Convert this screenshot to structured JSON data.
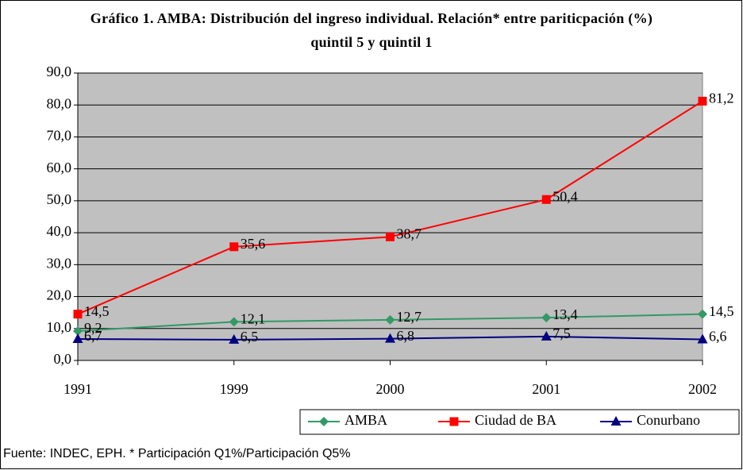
{
  "chart_data": {
    "type": "line",
    "title": "Gráfico 1. AMBA: Distribución del ingreso individual. Relación* entre pariticpación (%) quintil 5 y quintil 1",
    "source": "Fuente: INDEC, EPH. * Participación Q1%/Participación Q5%",
    "categories": [
      "1991",
      "1999",
      "2000",
      "2001",
      "2002"
    ],
    "series": [
      {
        "name": "AMBA",
        "color": "#339966",
        "marker": "diamond",
        "values": [
          9.2,
          12.1,
          12.7,
          13.4,
          14.5
        ],
        "value_labels": [
          "9,2",
          "12,1",
          "12,7",
          "13,4",
          "14,5"
        ]
      },
      {
        "name": "Ciudad de BA",
        "color": "#ff0000",
        "marker": "square",
        "values": [
          14.5,
          35.6,
          38.7,
          50.4,
          81.2
        ],
        "value_labels": [
          "14,5",
          "35,6",
          "38,7",
          "50,4",
          "81,2"
        ]
      },
      {
        "name": "Conurbano",
        "color": "#000080",
        "marker": "triangle",
        "values": [
          6.7,
          6.5,
          6.8,
          7.5,
          6.6
        ],
        "value_labels": [
          "6,7",
          "6,5",
          "6,8",
          "7,5",
          "6,6"
        ]
      }
    ],
    "ylim": [
      0,
      90
    ],
    "yticks": [
      {
        "value": 0,
        "label": "0,0"
      },
      {
        "value": 10,
        "label": "10,0"
      },
      {
        "value": 20,
        "label": "20,0"
      },
      {
        "value": 30,
        "label": "30,0"
      },
      {
        "value": 40,
        "label": "40,0"
      },
      {
        "value": 50,
        "label": "50,0"
      },
      {
        "value": 60,
        "label": "60,0"
      },
      {
        "value": 70,
        "label": "70,0"
      },
      {
        "value": 80,
        "label": "80,0"
      },
      {
        "value": 90,
        "label": "90,0"
      }
    ],
    "grid": true,
    "plot_background": "#c0c0c0",
    "legend": "bottom-right"
  }
}
